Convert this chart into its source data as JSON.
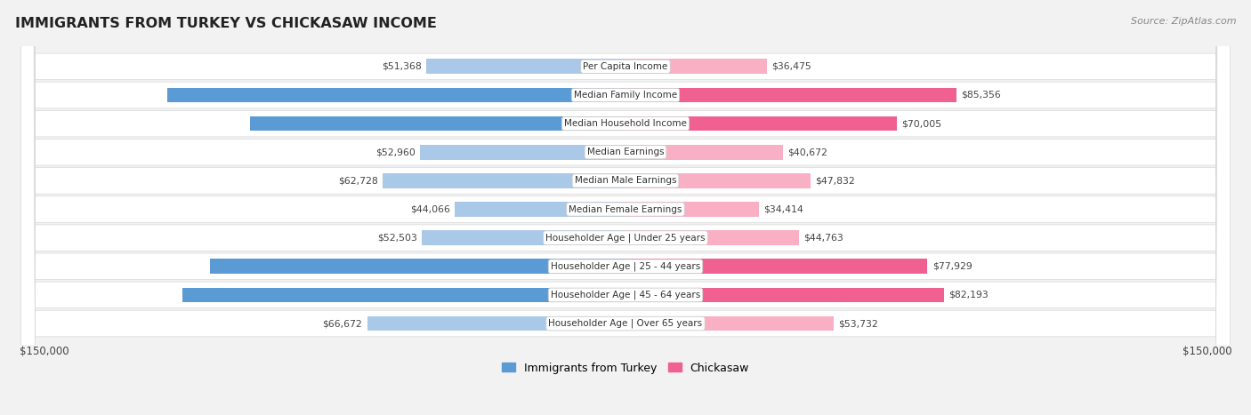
{
  "title": "IMMIGRANTS FROM TURKEY VS CHICKASAW INCOME",
  "source": "Source: ZipAtlas.com",
  "categories": [
    "Per Capita Income",
    "Median Family Income",
    "Median Household Income",
    "Median Earnings",
    "Median Male Earnings",
    "Median Female Earnings",
    "Householder Age | Under 25 years",
    "Householder Age | 25 - 44 years",
    "Householder Age | 45 - 64 years",
    "Householder Age | Over 65 years"
  ],
  "turkey_values": [
    51368,
    118325,
    96964,
    52960,
    62728,
    44066,
    52503,
    107258,
    114407,
    66672
  ],
  "chickasaw_values": [
    36475,
    85356,
    70005,
    40672,
    47832,
    34414,
    44763,
    77929,
    82193,
    53732
  ],
  "turkey_color_light": "#aac8e8",
  "turkey_color_dark": "#5b9bd5",
  "chickasaw_color_light": "#f9afc4",
  "chickasaw_color_dark": "#f06090",
  "bg_color": "#f2f2f2",
  "row_bg": "#ffffff",
  "row_border": "#d8d8d8",
  "max_val": 150000,
  "legend_turkey": "Immigrants from Turkey",
  "legend_chickasaw": "Chickasaw",
  "xlabel_left": "$150,000",
  "xlabel_right": "$150,000",
  "turkey_threshold": 90000,
  "chickasaw_threshold": 70000
}
